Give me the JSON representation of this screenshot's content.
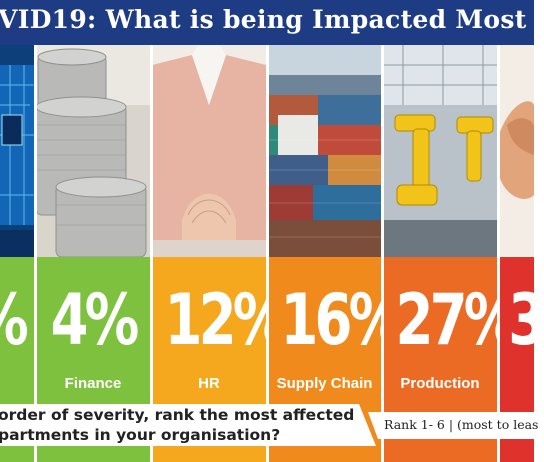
{
  "header": {
    "title": "VID19: What is being Impacted Most"
  },
  "colors": {
    "header": "#1e3c84",
    "green": "#7ec13e",
    "yellow": "#f5a81e",
    "orange": "#f08a1c",
    "deep_orange": "#ec6b24",
    "red": "#e0322c"
  },
  "columns": [
    {
      "photo": "circuit-board-photo",
      "value": "%",
      "label": "",
      "color": "#7ec13e"
    },
    {
      "photo": "coins-photo",
      "value": "4%",
      "label": "Finance",
      "color": "#7ec13e"
    },
    {
      "photo": "hr-person-photo",
      "value": "12%",
      "label": "HR",
      "color": "#f5a81e"
    },
    {
      "photo": "shipping-containers-photo",
      "value": "16%",
      "label": "Supply Chain",
      "color": "#f08a1c"
    },
    {
      "photo": "robot-arms-photo",
      "value": "27%",
      "label": "Production",
      "color": "#ec6b24"
    },
    {
      "photo": "handshake-photo",
      "value": "3",
      "label": "",
      "color": "#e0322c"
    }
  ],
  "question": {
    "line1": "order of severity, rank the most affected",
    "line2": "partments in your organisation?",
    "rank": "Rank 1- 6 | (most to least"
  }
}
